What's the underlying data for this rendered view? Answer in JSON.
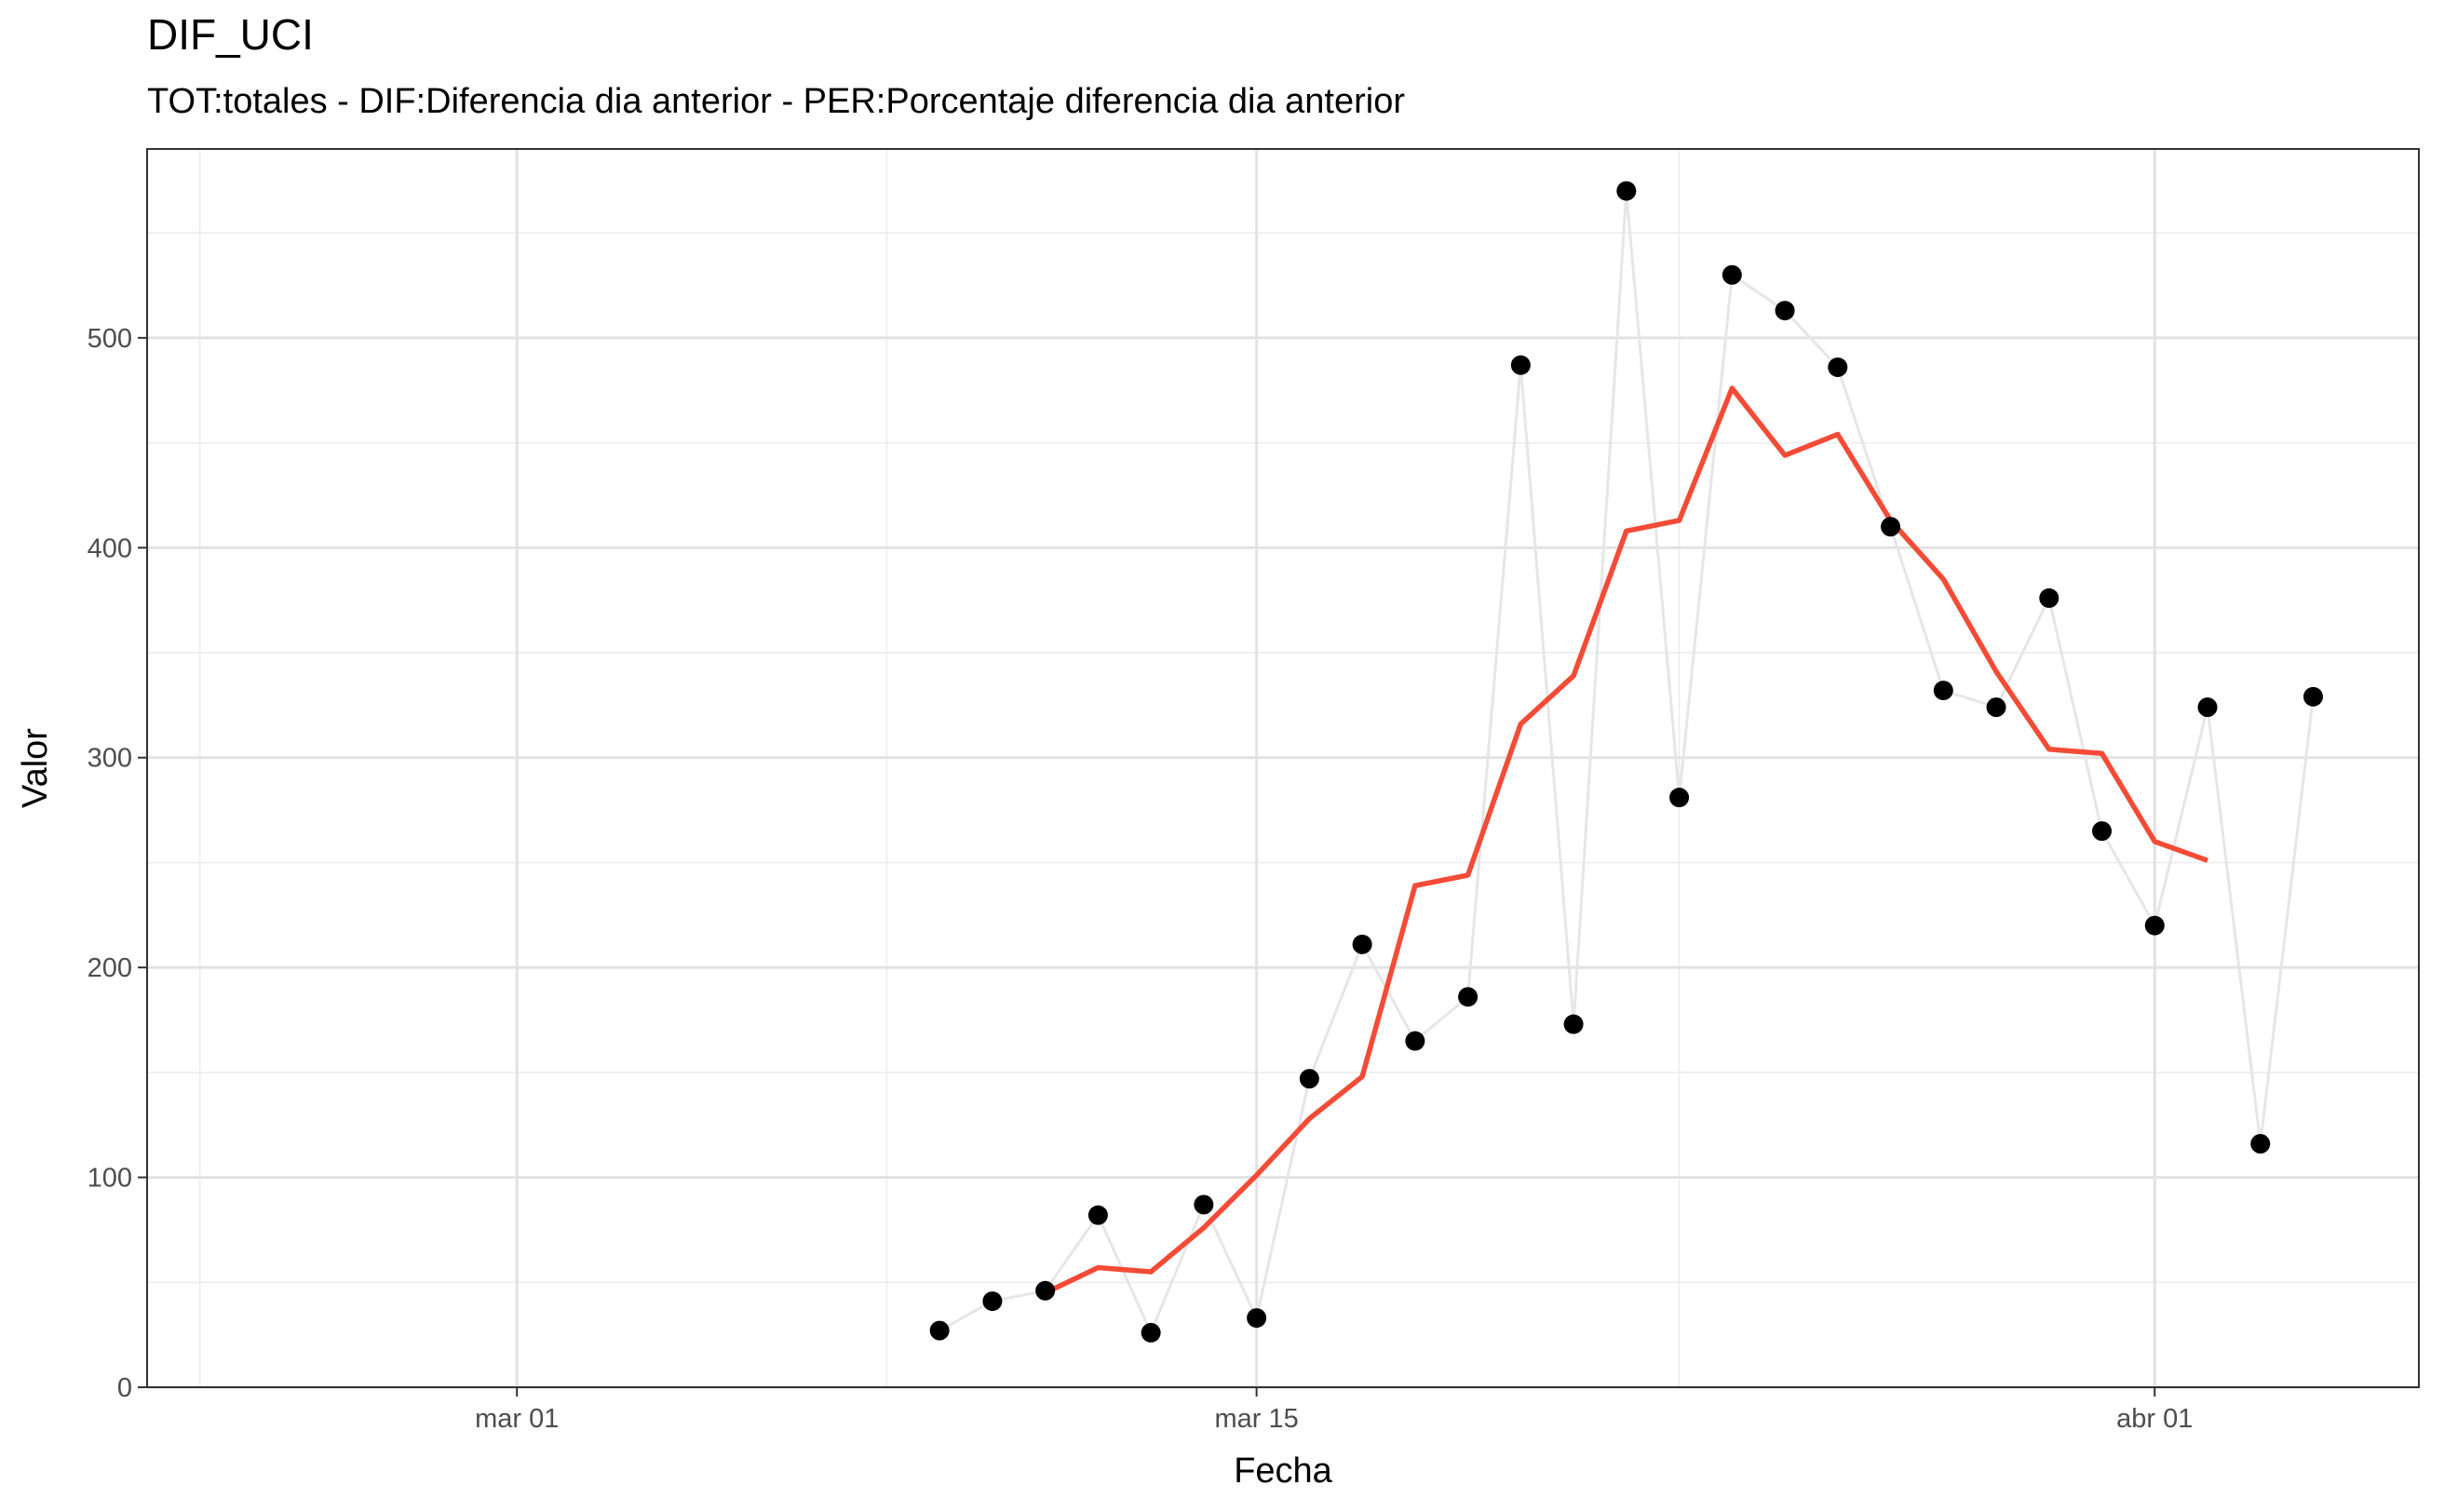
{
  "chart_data": {
    "type": "line",
    "title": "DIF_UCI",
    "subtitle": "TOT:totales - DIF:Diferencia dia anterior - PER:Porcentaje diferencia dia anterior",
    "xlabel": "Fecha",
    "ylabel": "Valor",
    "x_axis": {
      "type": "date",
      "range": [
        "2020-02-23",
        "2020-04-06"
      ],
      "major_ticks": [
        {
          "date": "2020-03-01",
          "label": "mar 01"
        },
        {
          "date": "2020-03-15",
          "label": "mar 15"
        },
        {
          "date": "2020-04-01",
          "label": "abr 01"
        }
      ],
      "minor_ticks": [
        "2020-02-24",
        "2020-03-08",
        "2020-03-23"
      ]
    },
    "y_axis": {
      "range": [
        0,
        590
      ],
      "major_ticks": [
        0,
        100,
        200,
        300,
        400,
        500
      ],
      "minor_ticks": [
        50,
        150,
        250,
        350,
        450,
        550
      ]
    },
    "grid": true,
    "legend": "none",
    "series": [
      {
        "kind": "points+line",
        "point_color": "#000000",
        "line_color": "#e6e6e6",
        "x": [
          "2020-03-09",
          "2020-03-10",
          "2020-03-11",
          "2020-03-12",
          "2020-03-13",
          "2020-03-14",
          "2020-03-15",
          "2020-03-16",
          "2020-03-17",
          "2020-03-18",
          "2020-03-19",
          "2020-03-20",
          "2020-03-21",
          "2020-03-22",
          "2020-03-23",
          "2020-03-24",
          "2020-03-25",
          "2020-03-26",
          "2020-03-27",
          "2020-03-28",
          "2020-03-29",
          "2020-03-30",
          "2020-03-31",
          "2020-04-01",
          "2020-04-02",
          "2020-04-03",
          "2020-04-04"
        ],
        "y": [
          27,
          41,
          46,
          82,
          26,
          87,
          33,
          147,
          211,
          165,
          186,
          487,
          173,
          570,
          281,
          530,
          513,
          486,
          410,
          332,
          324,
          376,
          265,
          220,
          324,
          116,
          329
        ]
      },
      {
        "kind": "line",
        "color": "#f44b36",
        "x": [
          "2020-03-11",
          "2020-03-12",
          "2020-03-13",
          "2020-03-14",
          "2020-03-15",
          "2020-03-16",
          "2020-03-17",
          "2020-03-18",
          "2020-03-19",
          "2020-03-20",
          "2020-03-21",
          "2020-03-22",
          "2020-03-23",
          "2020-03-24",
          "2020-03-25",
          "2020-03-26",
          "2020-03-27",
          "2020-03-28",
          "2020-03-29",
          "2020-03-30",
          "2020-03-31",
          "2020-04-01",
          "2020-04-02"
        ],
        "y": [
          45,
          57,
          55,
          76,
          101,
          128,
          148,
          239,
          244,
          316,
          339,
          408,
          413,
          476,
          444,
          454,
          413,
          385,
          341,
          304,
          302,
          260,
          251
        ]
      }
    ]
  }
}
